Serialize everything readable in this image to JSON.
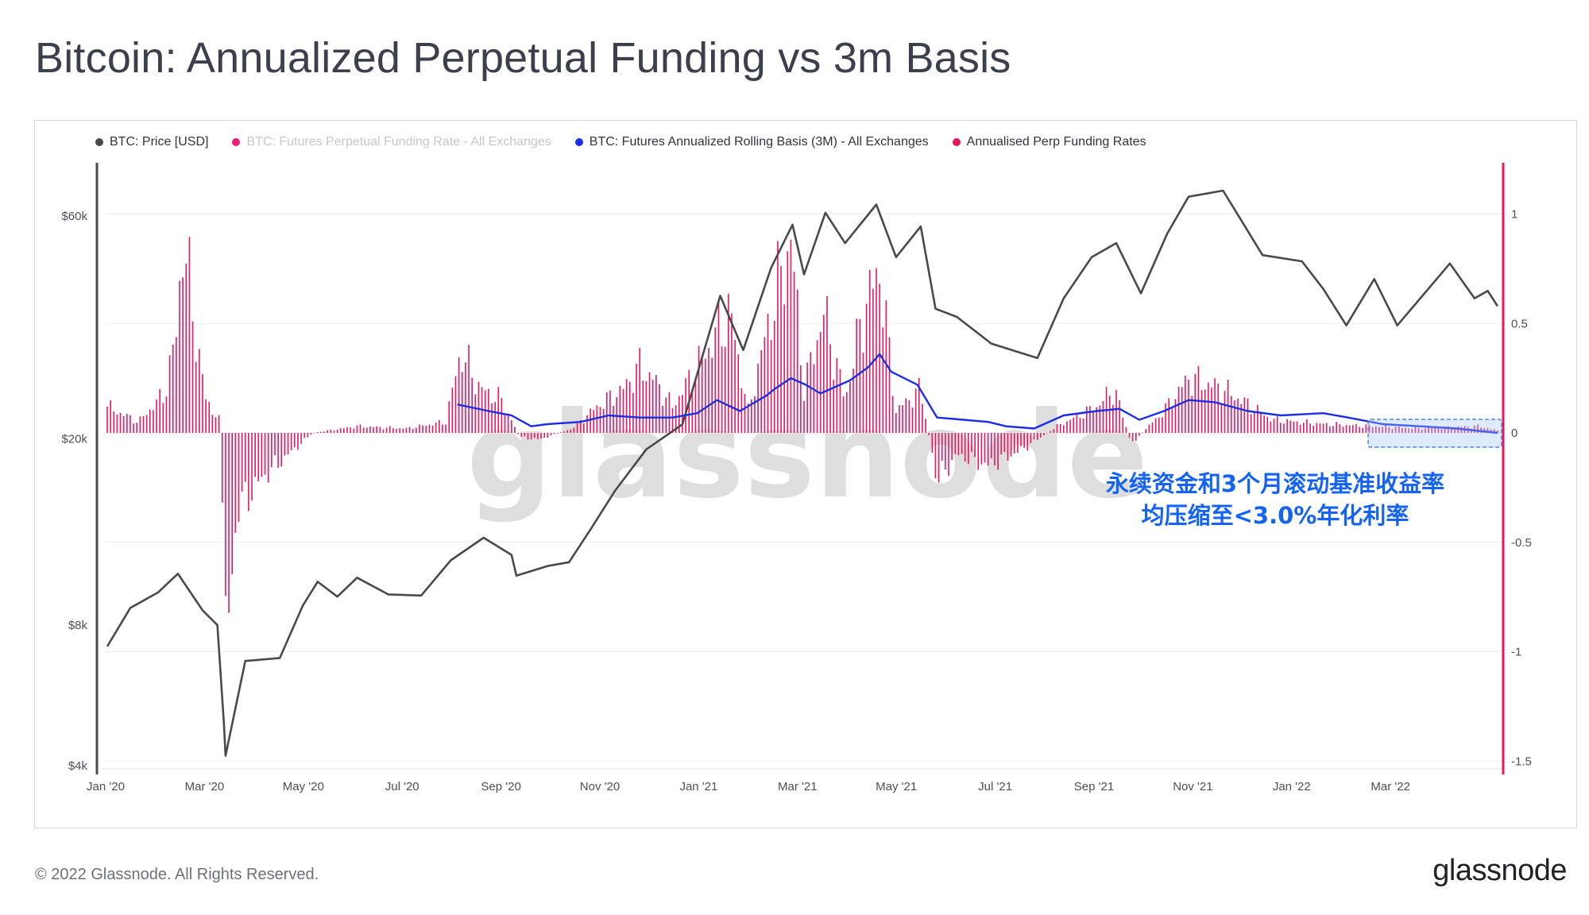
{
  "title": "Bitcoin: Annualized Perpetual Funding vs 3m Basis",
  "legend": [
    {
      "label": "BTC: Price [USD]",
      "color": "#4a4a4a",
      "muted": false
    },
    {
      "label": "BTC: Futures Perpetual Funding Rate - All Exchanges",
      "color": "#e91e78",
      "muted": true
    },
    {
      "label": "BTC: Futures Annualized Rolling Basis (3M) - All Exchanges",
      "color": "#1a2ee6",
      "muted": false
    },
    {
      "label": "Annualised Perp Funding Rates",
      "color": "#e8175d",
      "muted": false
    }
  ],
  "watermark": "glassnode",
  "annotation": [
    "永续资金和3个月滚动基准收益率",
    "均压缩至<3.0%年化利率"
  ],
  "footer": {
    "copyright": "© 2022 Glassnode. All Rights Reserved.",
    "logo": "glassnode"
  },
  "colors": {
    "price": "#4a4a4a",
    "basis": "#1a2ee6",
    "funding": "#e8175d",
    "annotation": "#1463f3",
    "right_axis": "#e8175d"
  },
  "chart_data": {
    "type": "line",
    "x_ticks": [
      "Jan '20",
      "Mar '20",
      "May '20",
      "Jul '20",
      "Sep '20",
      "Nov '20",
      "Jan '21",
      "Mar '21",
      "May '21",
      "Jul '21",
      "Sep '21",
      "Nov '21",
      "Jan '22",
      "Mar '22"
    ],
    "left_axis": {
      "scale": "log",
      "ticks": [
        "$4k",
        "$8k",
        "$20k",
        "$60k"
      ],
      "tick_values": [
        4000,
        8000,
        20000,
        60000
      ],
      "range": [
        3900,
        100000
      ]
    },
    "right_axis": {
      "ticks": [
        "1",
        "0.5",
        "0",
        "-0.5",
        "-1",
        "-1.5"
      ],
      "tick_values": [
        1,
        0.5,
        0,
        -0.5,
        -1,
        -1.5
      ],
      "range": [
        -1.5,
        1.22
      ]
    },
    "x_range": [
      "2020-01-01",
      "2022-04-28"
    ],
    "series": [
      {
        "name": "BTC: Price [USD]",
        "axis": "left",
        "points": [
          [
            "2020-01-01",
            7200
          ],
          [
            "2020-01-15",
            8700
          ],
          [
            "2020-02-01",
            9400
          ],
          [
            "2020-02-13",
            10300
          ],
          [
            "2020-02-28",
            8600
          ],
          [
            "2020-03-08",
            8000
          ],
          [
            "2020-03-12",
            4900
          ],
          [
            "2020-03-13",
            4200
          ],
          [
            "2020-03-25",
            6700
          ],
          [
            "2020-04-15",
            6800
          ],
          [
            "2020-04-29",
            8800
          ],
          [
            "2020-05-08",
            9900
          ],
          [
            "2020-05-20",
            9200
          ],
          [
            "2020-06-01",
            10100
          ],
          [
            "2020-06-20",
            9300
          ],
          [
            "2020-07-10",
            9250
          ],
          [
            "2020-07-28",
            11000
          ],
          [
            "2020-08-17",
            12300
          ],
          [
            "2020-09-03",
            11300
          ],
          [
            "2020-09-06",
            10200
          ],
          [
            "2020-09-25",
            10700
          ],
          [
            "2020-10-08",
            10900
          ],
          [
            "2020-10-21",
            12800
          ],
          [
            "2020-11-05",
            15500
          ],
          [
            "2020-11-24",
            19000
          ],
          [
            "2020-12-16",
            21500
          ],
          [
            "2021-01-08",
            40500
          ],
          [
            "2021-01-22",
            31000
          ],
          [
            "2021-02-08",
            46500
          ],
          [
            "2021-02-21",
            57500
          ],
          [
            "2021-02-28",
            45000
          ],
          [
            "2021-03-13",
            61000
          ],
          [
            "2021-03-25",
            52500
          ],
          [
            "2021-04-13",
            63500
          ],
          [
            "2021-04-25",
            49000
          ],
          [
            "2021-05-10",
            57000
          ],
          [
            "2021-05-19",
            38000
          ],
          [
            "2021-06-01",
            36500
          ],
          [
            "2021-06-22",
            32000
          ],
          [
            "2021-07-20",
            29800
          ],
          [
            "2021-08-05",
            40000
          ],
          [
            "2021-08-22",
            49000
          ],
          [
            "2021-09-06",
            52500
          ],
          [
            "2021-09-21",
            41000
          ],
          [
            "2021-10-07",
            55000
          ],
          [
            "2021-10-20",
            66000
          ],
          [
            "2021-11-10",
            68000
          ],
          [
            "2021-12-04",
            49500
          ],
          [
            "2021-12-28",
            48000
          ],
          [
            "2022-01-10",
            41900
          ],
          [
            "2022-01-24",
            35000
          ],
          [
            "2022-02-10",
            44000
          ],
          [
            "2022-02-24",
            35000
          ],
          [
            "2022-03-28",
            47500
          ],
          [
            "2022-04-12",
            40000
          ],
          [
            "2022-04-20",
            41500
          ],
          [
            "2022-04-26",
            38500
          ]
        ]
      },
      {
        "name": "BTC: Futures Annualized Rolling Basis (3M) - All Exchanges",
        "axis": "right",
        "points": [
          [
            "2020-08-01",
            0.13
          ],
          [
            "2020-08-20",
            0.1
          ],
          [
            "2020-09-03",
            0.08
          ],
          [
            "2020-09-15",
            0.03
          ],
          [
            "2020-09-25",
            0.04
          ],
          [
            "2020-10-15",
            0.05
          ],
          [
            "2020-11-01",
            0.08
          ],
          [
            "2020-11-20",
            0.07
          ],
          [
            "2020-12-10",
            0.07
          ],
          [
            "2020-12-25",
            0.09
          ],
          [
            "2021-01-06",
            0.15
          ],
          [
            "2021-01-20",
            0.1
          ],
          [
            "2021-02-05",
            0.17
          ],
          [
            "2021-02-10",
            0.2
          ],
          [
            "2021-02-20",
            0.25
          ],
          [
            "2021-03-01",
            0.22
          ],
          [
            "2021-03-10",
            0.18
          ],
          [
            "2021-03-28",
            0.24
          ],
          [
            "2021-04-08",
            0.3
          ],
          [
            "2021-04-15",
            0.36
          ],
          [
            "2021-04-22",
            0.28
          ],
          [
            "2021-05-08",
            0.22
          ],
          [
            "2021-05-20",
            0.07
          ],
          [
            "2021-06-05",
            0.06
          ],
          [
            "2021-06-20",
            0.05
          ],
          [
            "2021-07-01",
            0.03
          ],
          [
            "2021-07-18",
            0.02
          ],
          [
            "2021-08-05",
            0.08
          ],
          [
            "2021-08-25",
            0.1
          ],
          [
            "2021-09-08",
            0.11
          ],
          [
            "2021-09-20",
            0.06
          ],
          [
            "2021-10-05",
            0.1
          ],
          [
            "2021-10-20",
            0.15
          ],
          [
            "2021-11-05",
            0.14
          ],
          [
            "2021-11-25",
            0.1
          ],
          [
            "2021-12-15",
            0.08
          ],
          [
            "2022-01-10",
            0.09
          ],
          [
            "2022-01-25",
            0.07
          ],
          [
            "2022-02-15",
            0.04
          ],
          [
            "2022-03-10",
            0.03
          ],
          [
            "2022-04-01",
            0.02
          ],
          [
            "2022-04-26",
            0.0
          ]
        ]
      },
      {
        "name": "Annualised Perp Funding Rates",
        "axis": "right",
        "style": "bars",
        "points": [
          [
            "2020-01-01",
            0.12
          ],
          [
            "2020-01-20",
            0.05
          ],
          [
            "2020-02-05",
            0.18
          ],
          [
            "2020-02-12",
            0.45
          ],
          [
            "2020-02-16",
            0.9
          ],
          [
            "2020-02-22",
            0.55
          ],
          [
            "2020-03-01",
            0.15
          ],
          [
            "2020-03-10",
            0.05
          ],
          [
            "2020-03-13",
            -1.0
          ],
          [
            "2020-03-20",
            -0.35
          ],
          [
            "2020-04-05",
            -0.2
          ],
          [
            "2020-04-20",
            -0.1
          ],
          [
            "2020-05-05",
            0.0
          ],
          [
            "2020-06-01",
            0.03
          ],
          [
            "2020-07-01",
            0.02
          ],
          [
            "2020-07-25",
            0.05
          ],
          [
            "2020-08-03",
            0.37
          ],
          [
            "2020-08-15",
            0.2
          ],
          [
            "2020-08-28",
            0.15
          ],
          [
            "2020-09-08",
            -0.02
          ],
          [
            "2020-09-20",
            -0.03
          ],
          [
            "2020-10-10",
            0.02
          ],
          [
            "2020-10-25",
            0.12
          ],
          [
            "2020-11-10",
            0.2
          ],
          [
            "2020-11-20",
            0.3
          ],
          [
            "2020-11-28",
            0.25
          ],
          [
            "2020-12-10",
            0.12
          ],
          [
            "2020-12-25",
            0.3
          ],
          [
            "2021-01-08",
            0.48
          ],
          [
            "2021-01-14",
            0.55
          ],
          [
            "2021-01-25",
            0.1
          ],
          [
            "2021-02-08",
            0.55
          ],
          [
            "2021-02-20",
            0.88
          ],
          [
            "2021-02-28",
            0.2
          ],
          [
            "2021-03-12",
            0.55
          ],
          [
            "2021-03-25",
            0.15
          ],
          [
            "2021-04-05",
            0.55
          ],
          [
            "2021-04-15",
            0.75
          ],
          [
            "2021-04-25",
            0.1
          ],
          [
            "2021-05-10",
            0.2
          ],
          [
            "2021-05-20",
            -0.22
          ],
          [
            "2021-06-01",
            -0.1
          ],
          [
            "2021-06-20",
            -0.15
          ],
          [
            "2021-07-10",
            -0.08
          ],
          [
            "2021-08-01",
            0.03
          ],
          [
            "2021-08-25",
            0.12
          ],
          [
            "2021-09-05",
            0.2
          ],
          [
            "2021-09-15",
            -0.05
          ],
          [
            "2021-10-05",
            0.1
          ],
          [
            "2021-10-20",
            0.25
          ],
          [
            "2021-11-10",
            0.2
          ],
          [
            "2021-12-10",
            0.06
          ],
          [
            "2022-01-10",
            0.04
          ],
          [
            "2022-02-10",
            0.03
          ],
          [
            "2022-03-10",
            0.02
          ],
          [
            "2022-04-15",
            0.03
          ],
          [
            "2022-04-26",
            0.01
          ]
        ]
      }
    ]
  }
}
